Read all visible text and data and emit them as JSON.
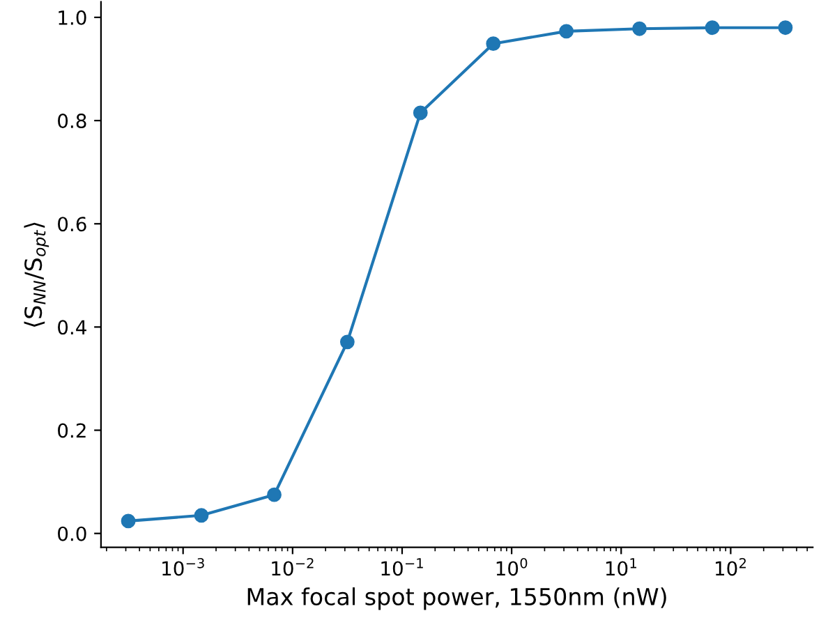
{
  "chart_data": {
    "type": "line",
    "xlabel": "Max focal spot power, 1550nm (nW)",
    "ylabel": "⟨S$_{NN}$/S$_{opt}$⟩",
    "x": [
      0.000316,
      0.00147,
      0.0068,
      0.0316,
      0.147,
      0.68,
      3.16,
      14.7,
      68,
      316
    ],
    "series": [
      {
        "color": "#1f77b4",
        "values": [
          0.024,
          0.035,
          0.075,
          0.371,
          0.815,
          0.949,
          0.973,
          0.978,
          0.98,
          0.98
        ]
      }
    ],
    "log": "x",
    "marker": "circle",
    "line_style": "solid",
    "grid": false,
    "legend": false,
    "xlim": [
      0.000178,
      562
    ],
    "xticks": [
      {
        "value": 0.001,
        "label": "10$^{−3}$"
      },
      {
        "value": 0.01,
        "label": "10$^{−2}$"
      },
      {
        "value": 0.1,
        "label": "10$^{−1}$"
      },
      {
        "value": 1,
        "label": "10$^{0}$"
      },
      {
        "value": 10,
        "label": "10$^{1}$"
      },
      {
        "value": 100,
        "label": "10$^{2}$"
      }
    ],
    "ylim": [
      -0.027,
      1.03
    ],
    "yticks": [
      {
        "value": 0,
        "label": "0.0"
      },
      {
        "value": 0.2,
        "label": "0.2"
      },
      {
        "value": 0.4,
        "label": "0.4"
      },
      {
        "value": 0.6,
        "label": "0.6"
      },
      {
        "value": 0.8,
        "label": "0.8"
      },
      {
        "value": 1,
        "label": "1.0"
      }
    ]
  }
}
